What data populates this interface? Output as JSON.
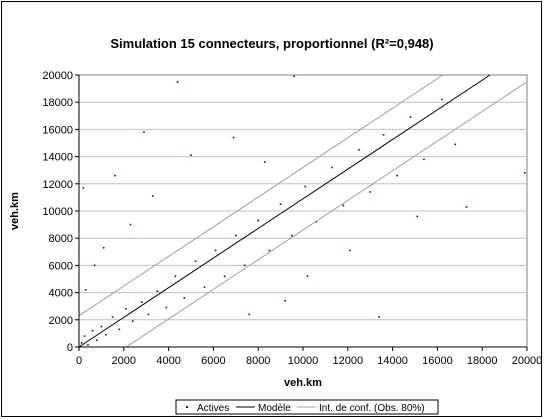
{
  "chart_data": {
    "type": "scatter",
    "title": "Simulation 15 connecteurs, proportionnel (R²=0,948)",
    "xlabel": "veh.km",
    "ylabel": "veh.km",
    "xlim": [
      0,
      20000
    ],
    "ylim": [
      0,
      20000
    ],
    "xticks": [
      0,
      2000,
      4000,
      6000,
      8000,
      10000,
      12000,
      14000,
      16000,
      18000,
      20000
    ],
    "yticks": [
      0,
      2000,
      4000,
      6000,
      8000,
      10000,
      12000,
      14000,
      16000,
      18000,
      20000
    ],
    "grid": "horizontal",
    "legend_position": "bottom",
    "series": [
      {
        "name": "Actives",
        "kind": "scatter",
        "color": "#0000ff",
        "points": [
          [
            120,
            300
          ],
          [
            250,
            800
          ],
          [
            400,
            150
          ],
          [
            600,
            1200
          ],
          [
            800,
            500
          ],
          [
            1000,
            1500
          ],
          [
            1200,
            900
          ],
          [
            1500,
            2200
          ],
          [
            1800,
            1300
          ],
          [
            2100,
            2800
          ],
          [
            2400,
            1900
          ],
          [
            2800,
            3300
          ],
          [
            3100,
            2400
          ],
          [
            3500,
            4100
          ],
          [
            3900,
            2900
          ],
          [
            4300,
            5200
          ],
          [
            4700,
            3600
          ],
          [
            5200,
            6300
          ],
          [
            5600,
            4400
          ],
          [
            6100,
            7100
          ],
          [
            6500,
            5200
          ],
          [
            7000,
            8200
          ],
          [
            7400,
            6000
          ],
          [
            8000,
            9300
          ],
          [
            8500,
            7100
          ],
          [
            9000,
            10500
          ],
          [
            9500,
            8200
          ],
          [
            10100,
            11800
          ],
          [
            10600,
            9200
          ],
          [
            11300,
            13200
          ],
          [
            11800,
            10400
          ],
          [
            12500,
            14500
          ],
          [
            13000,
            11400
          ],
          [
            13600,
            15600
          ],
          [
            14200,
            12600
          ],
          [
            14800,
            16900
          ],
          [
            15400,
            13800
          ],
          [
            16200,
            18200
          ],
          [
            16800,
            14900
          ],
          [
            17300,
            10300
          ],
          [
            4400,
            19500
          ],
          [
            9600,
            19900
          ],
          [
            1600,
            12600
          ],
          [
            2900,
            15800
          ],
          [
            200,
            11700
          ],
          [
            19900,
            12800
          ],
          [
            700,
            6000
          ],
          [
            300,
            4200
          ],
          [
            1100,
            7300
          ],
          [
            2300,
            9000
          ],
          [
            3300,
            11100
          ],
          [
            5000,
            14100
          ],
          [
            6900,
            15400
          ],
          [
            7600,
            2400
          ],
          [
            9200,
            3400
          ],
          [
            12100,
            7100
          ],
          [
            13400,
            2200
          ],
          [
            15100,
            9600
          ],
          [
            10200,
            5200
          ],
          [
            8300,
            13600
          ]
        ]
      },
      {
        "name": "Modèle",
        "kind": "line",
        "color": "#000000",
        "slope": 1.09
      },
      {
        "name": "Int. de conf. (Obs. 80%)",
        "kind": "band",
        "color": "#a0a0a0",
        "slope": 1.09,
        "band": 2300
      }
    ]
  }
}
